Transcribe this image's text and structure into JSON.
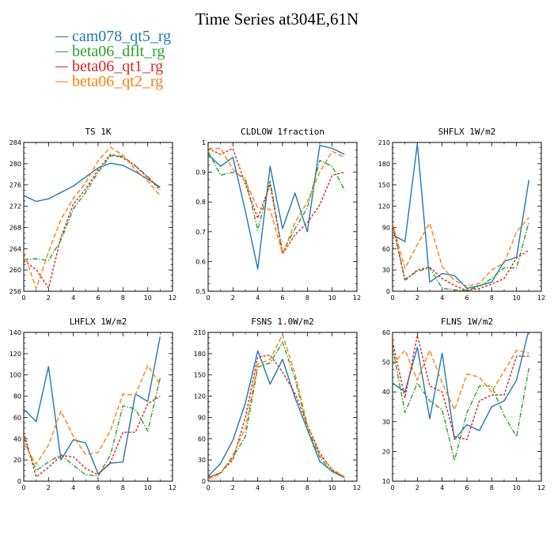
{
  "title": "Time Series at304E,61N",
  "legend": [
    {
      "name": "cam078_qt5_rg",
      "color": "#1f77b4"
    },
    {
      "name": "beta06_dflt_rg",
      "color": "#2ca02c"
    },
    {
      "name": "beta06_qt1_rg",
      "color": "#d62728"
    },
    {
      "name": "beta06_qt2_rg",
      "color": "#ff7f0e"
    }
  ],
  "chart_data": [
    {
      "type": "line",
      "title": "TS 1K",
      "x": [
        0,
        1,
        2,
        3,
        4,
        5,
        6,
        7,
        8,
        9,
        10,
        11
      ],
      "xlim": [
        0,
        12
      ],
      "xticks": [
        0,
        2,
        4,
        6,
        8,
        10,
        12
      ],
      "ylim": [
        256,
        284
      ],
      "yticks": [
        256,
        260,
        264,
        268,
        272,
        276,
        280,
        284
      ],
      "series": [
        {
          "name": "cam078_qt5_rg",
          "values": [
            274,
            272.9,
            273.4,
            274.6,
            275.8,
            277.5,
            279.2,
            280.1,
            279.7,
            278.5,
            277.1,
            275.6
          ]
        },
        {
          "name": "beta06_dflt_rg",
          "values": [
            262,
            262.1,
            261.8,
            265.6,
            271.5,
            274.6,
            278.4,
            281.5,
            281.4,
            279.6,
            277.6,
            275.3
          ]
        },
        {
          "name": "beta06_qt1_rg",
          "values": [
            261.8,
            260.1,
            256.6,
            266.2,
            272.4,
            275.2,
            278.9,
            281.8,
            281.1,
            279.6,
            277.4,
            275.1
          ]
        },
        {
          "name": "beta06_qt2_rg",
          "values": [
            263.4,
            256.5,
            263.4,
            269.5,
            273.5,
            276.4,
            280.6,
            283.1,
            281.6,
            278.9,
            276.7,
            274.0
          ]
        }
      ]
    },
    {
      "type": "line",
      "title": "CLDLOW 1fraction",
      "x": [
        0,
        1,
        2,
        3,
        4,
        5,
        6,
        7,
        8,
        9,
        10,
        11
      ],
      "xlim": [
        0,
        12
      ],
      "xticks": [
        0,
        2,
        4,
        6,
        8,
        10,
        12
      ],
      "ylim": [
        0.5,
        1.0
      ],
      "yticks": [
        0.5,
        0.6,
        0.7,
        0.8,
        0.9,
        1.0
      ],
      "series": [
        {
          "name": "cam078_qt5_rg",
          "values": [
            0.96,
            0.92,
            0.95,
            0.77,
            0.575,
            0.92,
            0.71,
            0.83,
            0.7,
            0.99,
            0.98,
            0.96
          ]
        },
        {
          "name": "beta06_dflt_rg",
          "values": [
            0.97,
            0.89,
            0.9,
            0.88,
            0.705,
            0.87,
            0.63,
            0.71,
            0.78,
            0.94,
            0.92,
            0.84
          ]
        },
        {
          "name": "beta06_qt1_rg",
          "values": [
            0.98,
            0.96,
            0.98,
            0.86,
            0.745,
            0.86,
            0.625,
            0.69,
            0.73,
            0.79,
            0.89,
            0.9
          ]
        },
        {
          "name": "beta06_qt2_rg",
          "values": [
            0.98,
            0.98,
            0.91,
            0.87,
            0.78,
            0.775,
            0.625,
            0.73,
            0.8,
            0.9,
            0.97,
            0.95
          ]
        }
      ]
    },
    {
      "type": "line",
      "title": "SHFLX 1W/m2",
      "x": [
        0,
        1,
        2,
        3,
        4,
        5,
        6,
        7,
        8,
        9,
        10,
        11
      ],
      "xlim": [
        0,
        12
      ],
      "xticks": [
        0,
        2,
        4,
        6,
        8,
        10,
        12
      ],
      "ylim": [
        0,
        210
      ],
      "yticks": [
        0,
        30,
        60,
        90,
        120,
        150,
        180,
        210
      ],
      "series": [
        {
          "name": "cam078_qt5_rg",
          "values": [
            80,
            70,
            208,
            13,
            25,
            22,
            4,
            8,
            13,
            42,
            48,
            157
          ]
        },
        {
          "name": "beta06_dflt_rg",
          "values": [
            94,
            17,
            28,
            33,
            4,
            2,
            1,
            7,
            18,
            33,
            33,
            98
          ]
        },
        {
          "name": "beta06_qt1_rg",
          "values": [
            95,
            15,
            30,
            34,
            18,
            8,
            1,
            4,
            10,
            18,
            47,
            58
          ]
        },
        {
          "name": "beta06_qt2_rg",
          "values": [
            96,
            32,
            66,
            96,
            35,
            15,
            7,
            11,
            30,
            40,
            84,
            104
          ]
        }
      ]
    },
    {
      "type": "line",
      "title": "LHFLX 1W/m2",
      "x": [
        0,
        1,
        2,
        3,
        4,
        5,
        6,
        7,
        8,
        9,
        10,
        11
      ],
      "xlim": [
        0,
        12
      ],
      "xticks": [
        0,
        2,
        4,
        6,
        8,
        10,
        12
      ],
      "ylim": [
        0,
        140
      ],
      "yticks": [
        0,
        20,
        40,
        60,
        80,
        100,
        120,
        140
      ],
      "series": [
        {
          "name": "cam078_qt5_rg",
          "values": [
            68,
            56,
            108,
            20,
            39,
            36,
            7,
            17,
            18,
            82,
            75,
            136
          ]
        },
        {
          "name": "beta06_dflt_rg",
          "values": [
            41,
            10,
            18,
            25,
            15,
            6,
            5,
            25,
            71,
            68,
            47,
            97
          ]
        },
        {
          "name": "beta06_qt1_rg",
          "values": [
            46,
            4,
            13,
            24,
            23,
            12,
            6,
            18,
            46,
            46,
            73,
            80
          ]
        },
        {
          "name": "beta06_qt2_rg",
          "values": [
            35,
            16,
            34,
            66,
            42,
            25,
            27,
            48,
            82,
            81,
            109,
            91
          ]
        }
      ]
    },
    {
      "type": "line",
      "title": "FSNS 1.0W/m2",
      "x": [
        0,
        1,
        2,
        3,
        4,
        5,
        6,
        7,
        8,
        9,
        10,
        11
      ],
      "xlim": [
        0,
        12
      ],
      "xticks": [
        0,
        2,
        4,
        6,
        8,
        10,
        12
      ],
      "ylim": [
        0,
        210
      ],
      "yticks": [
        0,
        30,
        60,
        90,
        120,
        150,
        180,
        210
      ],
      "series": [
        {
          "name": "cam078_qt5_rg",
          "values": [
            7,
            25,
            58,
            110,
            184,
            137,
            172,
            118,
            73,
            28,
            14,
            5
          ]
        },
        {
          "name": "beta06_dflt_rg",
          "values": [
            5,
            12,
            34,
            63,
            161,
            167,
            196,
            145,
            75,
            34,
            13,
            6
          ]
        },
        {
          "name": "beta06_qt1_rg",
          "values": [
            5,
            12,
            30,
            90,
            175,
            178,
            154,
            124,
            80,
            40,
            16,
            5
          ]
        },
        {
          "name": "beta06_qt2_rg",
          "values": [
            3,
            10,
            37,
            75,
            165,
            172,
            207,
            152,
            80,
            37,
            17,
            6
          ]
        }
      ]
    },
    {
      "type": "line",
      "title": "FLNS 1W/m2",
      "x": [
        0,
        1,
        2,
        3,
        4,
        5,
        6,
        7,
        8,
        9,
        10,
        11
      ],
      "xlim": [
        0,
        12
      ],
      "xticks": [
        0,
        2,
        4,
        6,
        8,
        10,
        12
      ],
      "ylim": [
        10,
        60
      ],
      "yticks": [
        10,
        20,
        30,
        40,
        50,
        60
      ],
      "series": [
        {
          "name": "cam078_qt5_rg",
          "values": [
            43,
            40,
            55,
            31,
            53,
            24,
            29,
            27,
            35,
            37,
            44,
            61
          ]
        },
        {
          "name": "beta06_dflt_rg",
          "values": [
            55,
            33,
            43,
            37,
            34,
            17,
            33,
            42,
            42,
            32,
            25,
            48
          ]
        },
        {
          "name": "beta06_qt1_rg",
          "values": [
            57,
            38,
            59,
            42,
            40,
            25,
            24,
            37,
            39,
            39,
            52,
            52
          ]
        },
        {
          "name": "beta06_qt2_rg",
          "values": [
            49,
            54,
            44,
            54,
            43,
            34,
            46,
            45,
            40,
            47,
            54,
            53
          ]
        }
      ]
    }
  ]
}
